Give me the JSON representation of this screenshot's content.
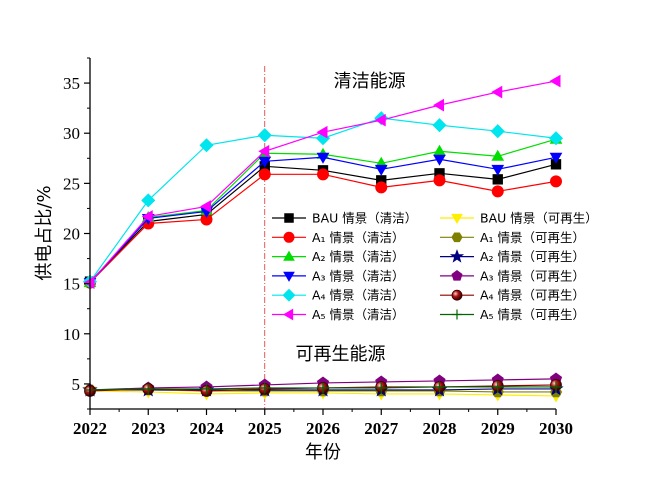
{
  "chart_data": {
    "type": "line",
    "xlabel": "年份",
    "ylabel": "供电占比/%",
    "x": [
      2022,
      2023,
      2024,
      2025,
      2026,
      2027,
      2028,
      2029,
      2030
    ],
    "xlim": [
      2022,
      2030
    ],
    "ylim": [
      2.5,
      37.5
    ],
    "yticks": [
      5,
      10,
      15,
      20,
      25,
      30,
      35
    ],
    "grid": false,
    "vline_x": 2025,
    "annotations": [
      {
        "text": "清洁能源",
        "x": 2026.8,
        "y": 34.6
      },
      {
        "text": "可再生能源",
        "x": 2026.3,
        "y": 7.4
      }
    ],
    "legend_position": "center-right",
    "series": [
      {
        "name": "BAU 情景（清洁）",
        "color": "#000000",
        "marker": "square",
        "values": [
          15.2,
          21.2,
          21.9,
          26.7,
          26.3,
          25.3,
          26.0,
          25.4,
          26.9
        ]
      },
      {
        "name": "A₁ 情景（清洁）",
        "color": "#ff0000",
        "marker": "circle",
        "values": [
          15.1,
          21.0,
          21.4,
          25.9,
          25.9,
          24.6,
          25.3,
          24.2,
          25.2
        ]
      },
      {
        "name": "A₂ 情景（清洁）",
        "color": "#00dd00",
        "marker": "triangle-up",
        "values": [
          15.1,
          21.6,
          22.3,
          28.0,
          27.9,
          27.0,
          28.2,
          27.7,
          29.4
        ]
      },
      {
        "name": "A₃ 情景（清洁）",
        "color": "#0000ff",
        "marker": "triangle-down",
        "values": [
          15.1,
          21.5,
          22.2,
          27.2,
          27.6,
          26.4,
          27.4,
          26.4,
          27.6
        ]
      },
      {
        "name": "A₄ 情景（清洁）",
        "color": "#00e5ee",
        "marker": "diamond",
        "values": [
          15.2,
          23.3,
          28.8,
          29.8,
          29.5,
          31.5,
          30.8,
          30.2,
          29.5
        ]
      },
      {
        "name": "A₅ 情景（清洁）",
        "color": "#ff00ff",
        "marker": "triangle-left",
        "values": [
          15.1,
          21.7,
          22.7,
          28.2,
          30.1,
          31.3,
          32.8,
          34.1,
          35.2
        ]
      },
      {
        "name": "BAU 情景（可再生）",
        "color": "#ffee00",
        "marker": "triangle-down",
        "values": [
          4.3,
          4.2,
          4.0,
          4.1,
          4.1,
          4.0,
          4.0,
          3.9,
          3.8
        ]
      },
      {
        "name": "A₁ 情景（可再生）",
        "color": "#808000",
        "marker": "hexagon",
        "values": [
          4.4,
          4.4,
          4.3,
          4.3,
          4.3,
          4.3,
          4.3,
          4.2,
          4.2
        ]
      },
      {
        "name": "A₂ 情景（可再生）",
        "color": "#000080",
        "marker": "star",
        "values": [
          4.4,
          4.4,
          4.4,
          4.4,
          4.4,
          4.4,
          4.4,
          4.5,
          4.5
        ]
      },
      {
        "name": "A₃ 情景（可再生）",
        "color": "#800080",
        "marker": "pentagon",
        "values": [
          4.4,
          4.6,
          4.7,
          4.9,
          5.1,
          5.2,
          5.3,
          5.4,
          5.5
        ]
      },
      {
        "name": "A₄ 情景（可再生）",
        "color": "#8b0000",
        "marker": "sphere",
        "values": [
          4.3,
          4.5,
          4.3,
          4.5,
          4.6,
          4.7,
          4.7,
          4.8,
          4.9
        ]
      },
      {
        "name": "A₅ 情景（可再生）",
        "color": "#006400",
        "marker": "plus",
        "values": [
          4.4,
          4.5,
          4.5,
          4.6,
          4.6,
          4.6,
          4.7,
          4.7,
          4.7
        ]
      }
    ]
  }
}
